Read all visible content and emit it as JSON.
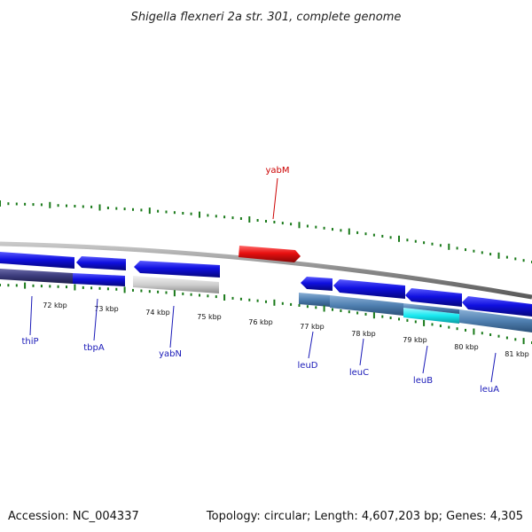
{
  "title": "Shigella flexneri 2a str. 301, complete genome",
  "footer": {
    "accession": "Accession: NC_004337",
    "info": "Topology: circular; Length: 4,607,203 bp; Genes: 4,305"
  },
  "ticks": [
    "72 kbp",
    "73 kbp",
    "74 kbp",
    "75 kbp",
    "76 kbp",
    "77 kbp",
    "78 kbp",
    "79 kbp",
    "80 kbp",
    "81 kbp"
  ],
  "genes": [
    {
      "name": "thiP"
    },
    {
      "name": "tbpA"
    },
    {
      "name": "yabN"
    },
    {
      "name": "leuD"
    },
    {
      "name": "leuC"
    },
    {
      "name": "leuB"
    },
    {
      "name": "leuA"
    },
    {
      "name": "yabM"
    }
  ],
  "colors": {
    "gene_label": "#1a1ab8",
    "highlight_label": "#cc0000",
    "cds": "#1010e0",
    "cds_dark": "#0a0aa0",
    "highlight": "#e81010",
    "pseudogene": "#c8c8c8",
    "backbone": "#8a8a8a",
    "skew_dot": "#1a7a1a",
    "feature_steel": "#4f7fb0",
    "feature_cyan": "#18e8f0",
    "feature_navy": "#3a3a7a"
  }
}
